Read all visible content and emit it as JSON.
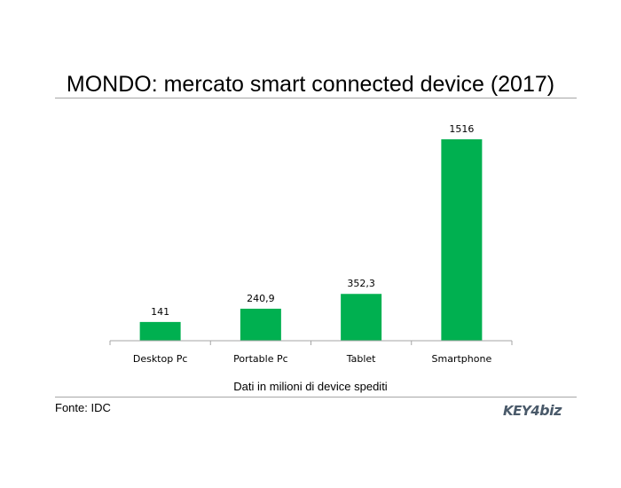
{
  "header": {
    "title": "MONDO: mercato smart connected device (2017)"
  },
  "chart_data": {
    "type": "bar",
    "title": "MONDO: mercato smart connected device (2017)",
    "xlabel": "Dati in milioni di device spediti",
    "ylabel": "",
    "categories": [
      "Desktop Pc",
      "Portable Pc",
      "Tablet",
      "Smartphone"
    ],
    "values": [
      141,
      240.9,
      352.3,
      1516
    ],
    "value_labels": [
      "141",
      "240,9",
      "352,3",
      "1516"
    ],
    "ylim": [
      0,
      1516
    ],
    "grid": false,
    "legend": "none",
    "bar_color": "#00b050"
  },
  "footer": {
    "source": "Fonte: IDC",
    "logo_text": "KEY4biz",
    "logo_color": "#4a5a6a"
  }
}
